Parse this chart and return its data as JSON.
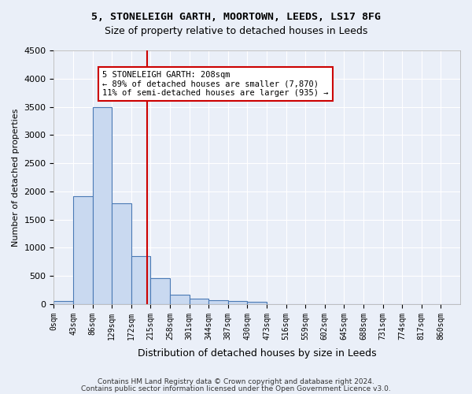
{
  "title1": "5, STONELEIGH GARTH, MOORTOWN, LEEDS, LS17 8FG",
  "title2": "Size of property relative to detached houses in Leeds",
  "xlabel": "Distribution of detached houses by size in Leeds",
  "ylabel": "Number of detached properties",
  "bin_labels": [
    "0sqm",
    "43sqm",
    "86sqm",
    "129sqm",
    "172sqm",
    "215sqm",
    "258sqm",
    "301sqm",
    "344sqm",
    "387sqm",
    "430sqm",
    "473sqm",
    "516sqm",
    "559sqm",
    "602sqm",
    "645sqm",
    "688sqm",
    "731sqm",
    "774sqm",
    "817sqm",
    "860sqm"
  ],
  "bar_values": [
    50,
    1920,
    3500,
    1790,
    850,
    460,
    165,
    100,
    75,
    55,
    40,
    0,
    0,
    0,
    0,
    0,
    0,
    0,
    0,
    0,
    0
  ],
  "bar_color": "#c9d9f0",
  "bar_edge_color": "#4a7ab5",
  "vline_color": "#cc0000",
  "annotation_line1": "5 STONELEIGH GARTH: 208sqm",
  "annotation_line2": "← 89% of detached houses are smaller (7,870)",
  "annotation_line3": "11% of semi-detached houses are larger (935) →",
  "annotation_box_color": "#cc0000",
  "ylim": [
    0,
    4500
  ],
  "yticks": [
    0,
    500,
    1000,
    1500,
    2000,
    2500,
    3000,
    3500,
    4000,
    4500
  ],
  "footer1": "Contains HM Land Registry data © Crown copyright and database right 2024.",
  "footer2": "Contains public sector information licensed under the Open Government Licence v3.0.",
  "bg_color": "#eaeff8",
  "plot_bg_color": "#eaeff8"
}
